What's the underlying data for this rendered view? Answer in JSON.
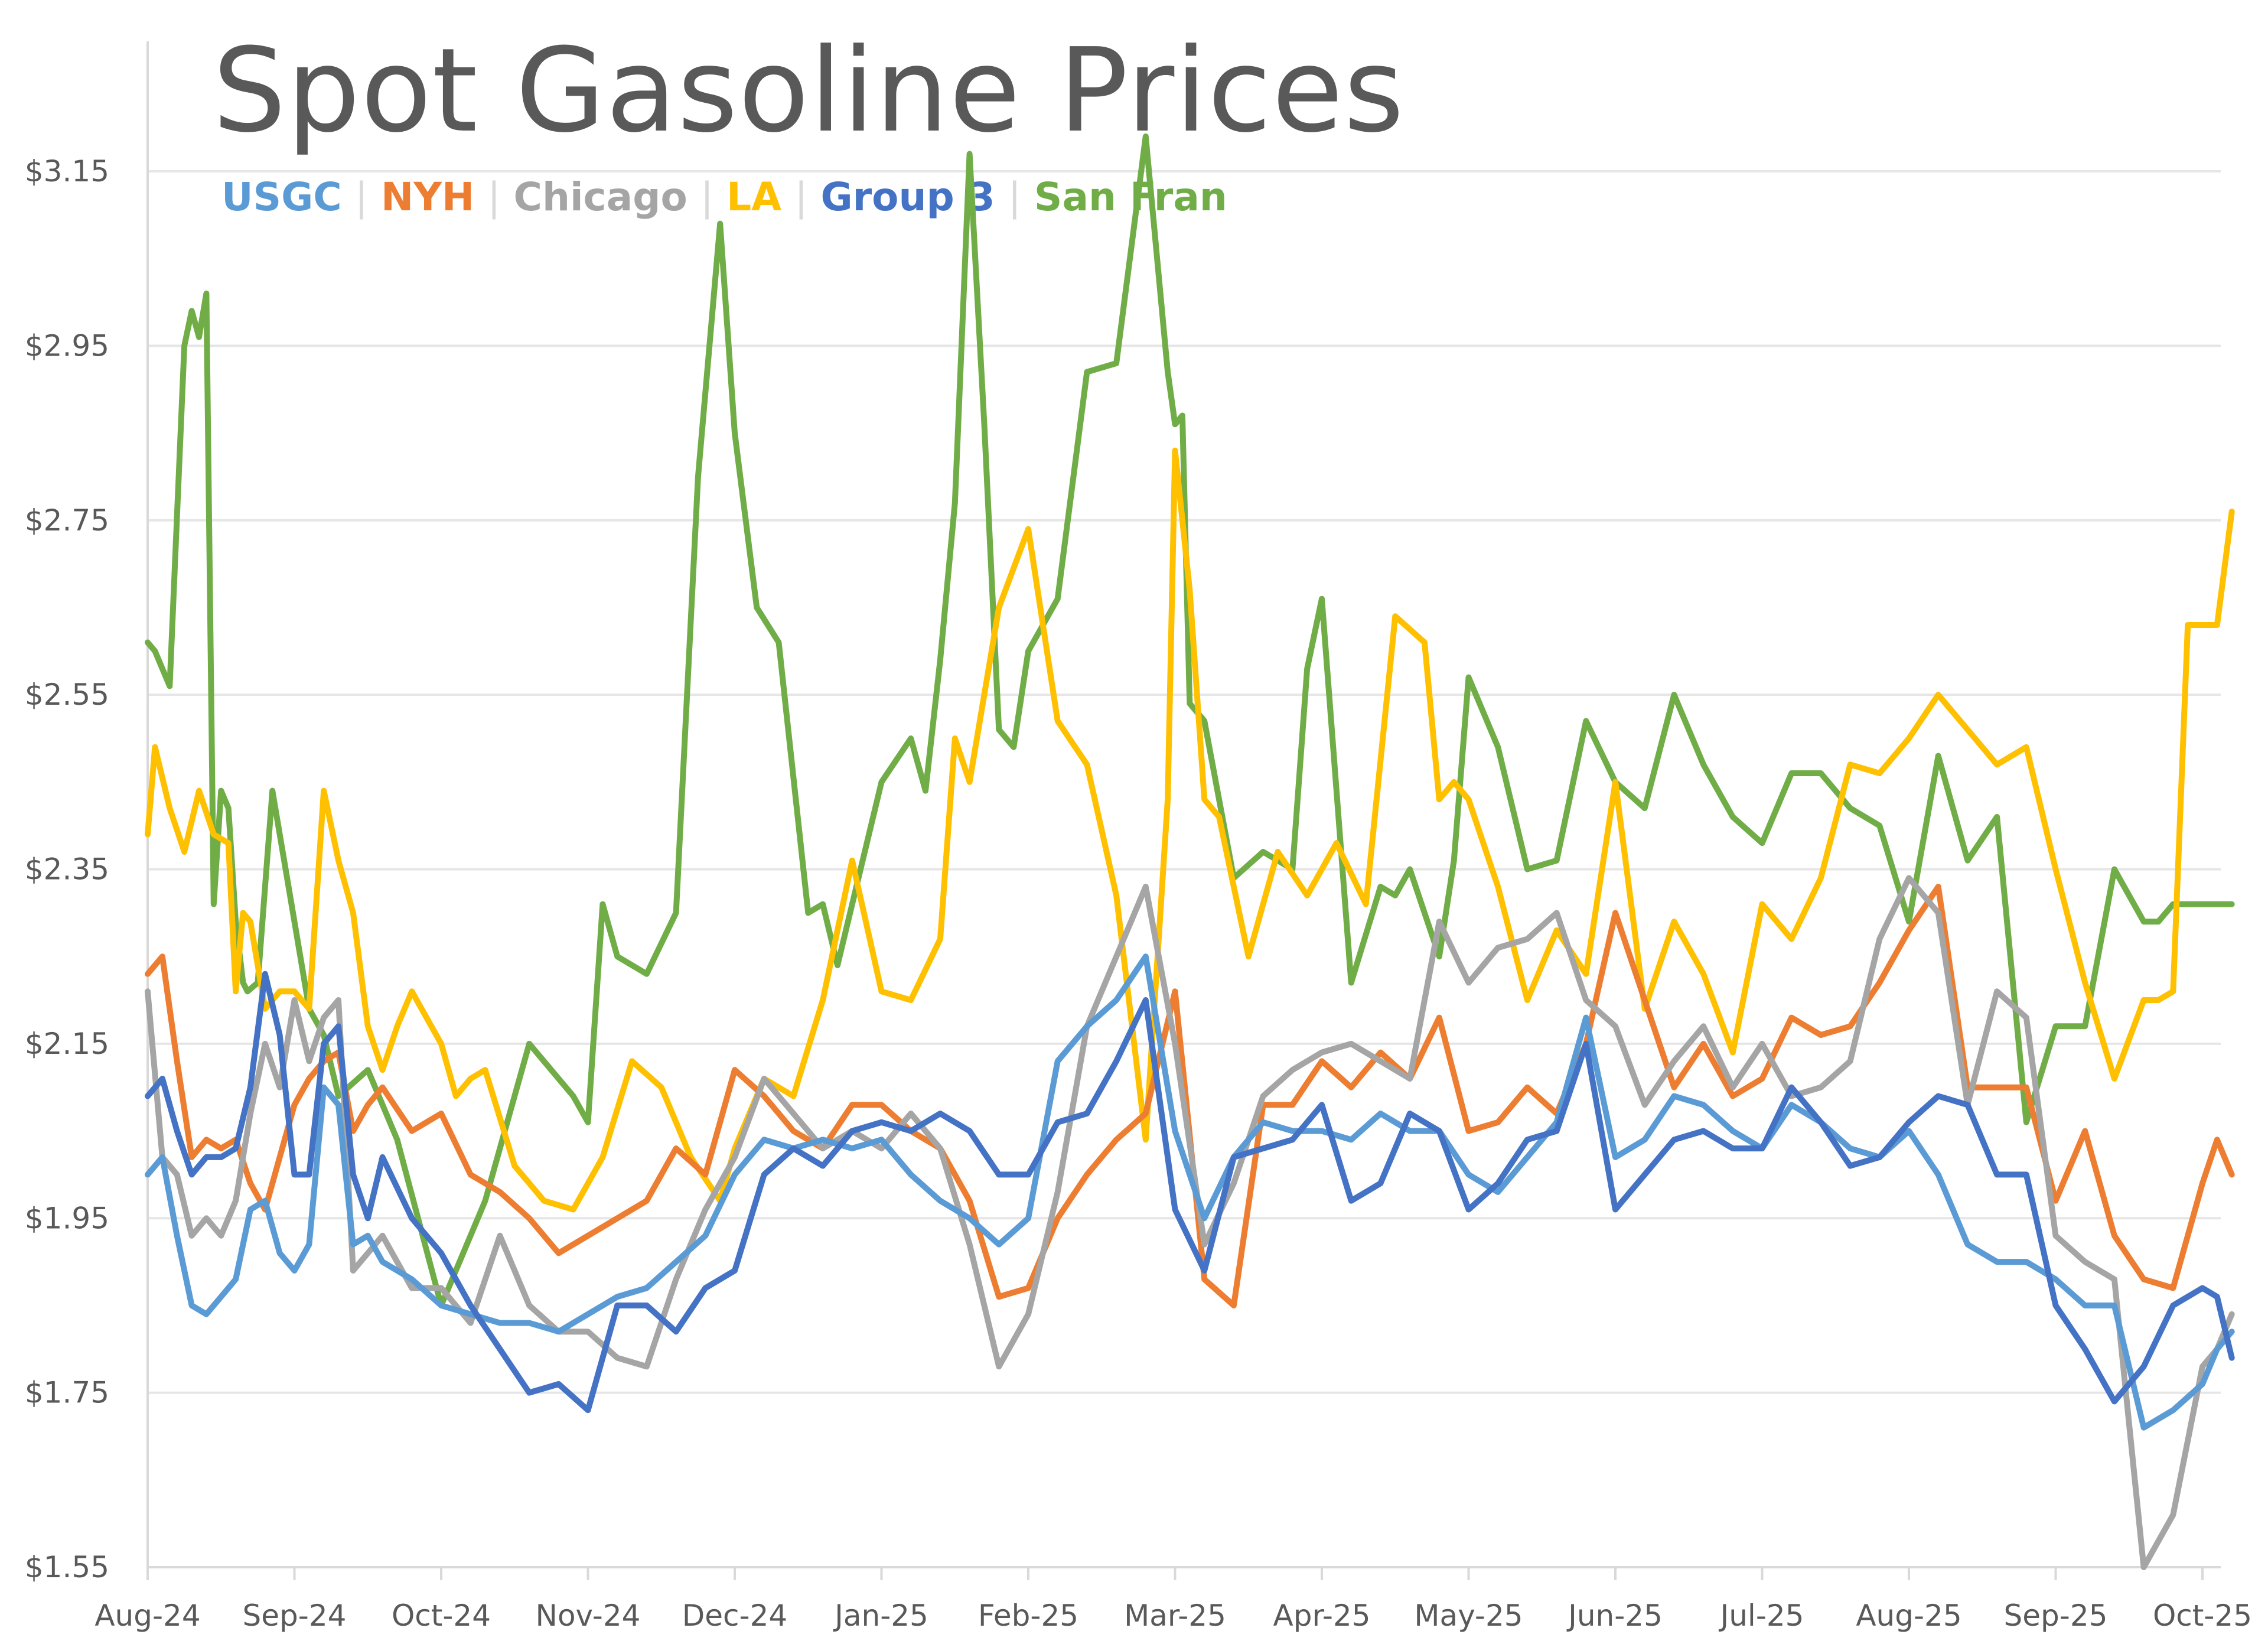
{
  "title": "Spot Gasoline Prices",
  "legend": [
    {
      "label": "USGC",
      "color": "#5B9BD5"
    },
    {
      "label": "NYH",
      "color": "#ED7D31"
    },
    {
      "label": "Chicago",
      "color": "#A5A5A5"
    },
    {
      "label": "LA",
      "color": "#FFC000"
    },
    {
      "label": "Group 3",
      "color": "#4472C4"
    },
    {
      "label": "San Fran",
      "color": "#70AD47"
    }
  ],
  "chart_data": {
    "type": "line",
    "title": "Spot Gasoline Prices",
    "xlabel": "",
    "ylabel": "",
    "ylim": [
      1.55,
      3.25
    ],
    "yticks": [
      "$1.55",
      "$1.75",
      "$1.95",
      "$2.15",
      "$2.35",
      "$2.55",
      "$2.75",
      "$2.95",
      "$3.15"
    ],
    "ytick_values": [
      1.55,
      1.75,
      1.95,
      2.15,
      2.35,
      2.55,
      2.75,
      2.95,
      3.15
    ],
    "x_categories": [
      "Aug-24",
      "Sep-24",
      "Oct-24",
      "Nov-24",
      "Dec-24",
      "Jan-25",
      "Feb-25",
      "Mar-25",
      "Apr-25",
      "May-25",
      "Jun-25",
      "Jul-25",
      "Aug-25",
      "Sep-25",
      "Oct-25"
    ],
    "grid": true,
    "legend_position": "top-left",
    "series": [
      {
        "name": "San Fran",
        "color": "#70AD47",
        "x": [
          0,
          0.05,
          0.15,
          0.25,
          0.3,
          0.35,
          0.4,
          0.45,
          0.5,
          0.55,
          0.6,
          0.65,
          0.68,
          0.75,
          0.85,
          1,
          1.1,
          1.2,
          1.3,
          1.5,
          1.7,
          2,
          2.3,
          2.6,
          2.9,
          3,
          3.1,
          3.2,
          3.4,
          3.6,
          3.75,
          3.9,
          4,
          4.15,
          4.3,
          4.5,
          4.6,
          4.7,
          5,
          5.2,
          5.3,
          5.4,
          5.5,
          5.6,
          5.7,
          5.8,
          5.9,
          6,
          6.2,
          6.4,
          6.6,
          6.8,
          6.95,
          7,
          7.05,
          7.1,
          7.2,
          7.4,
          7.6,
          7.8,
          7.9,
          8,
          8.2,
          8.4,
          8.5,
          8.6,
          8.7,
          8.8,
          8.9,
          9,
          9.2,
          9.4,
          9.6,
          9.8,
          10,
          10.2,
          10.4,
          10.6,
          10.8,
          11,
          11.2,
          11.4,
          11.6,
          11.8,
          12,
          12.2,
          12.4,
          12.6,
          12.8,
          13,
          13.2,
          13.4,
          13.6,
          13.7,
          13.8,
          13.9,
          14,
          14.1,
          14.2
        ],
        "values": [
          2.61,
          2.6,
          2.56,
          2.95,
          2.99,
          2.96,
          3.01,
          2.31,
          2.44,
          2.42,
          2.29,
          2.22,
          2.21,
          2.22,
          2.44,
          2.29,
          2.19,
          2.16,
          2.09,
          2.12,
          2.04,
          1.85,
          1.97,
          2.15,
          2.09,
          2.06,
          2.31,
          2.25,
          2.23,
          2.3,
          2.8,
          3.09,
          2.85,
          2.65,
          2.61,
          2.3,
          2.31,
          2.24,
          2.45,
          2.5,
          2.44,
          2.59,
          2.77,
          3.17,
          2.86,
          2.51,
          2.49,
          2.6,
          2.66,
          2.92,
          2.93,
          3.19,
          2.92,
          2.86,
          2.87,
          2.54,
          2.52,
          2.34,
          2.37,
          2.35,
          2.58,
          2.66,
          2.22,
          2.33,
          2.32,
          2.35,
          2.3,
          2.25,
          2.36,
          2.57,
          2.49,
          2.35,
          2.36,
          2.52,
          2.45,
          2.42,
          2.55,
          2.47,
          2.41,
          2.38,
          2.46,
          2.46,
          2.42,
          2.4,
          2.29,
          2.48,
          2.36,
          2.41,
          2.06,
          2.17,
          2.17,
          2.35,
          2.29,
          2.29,
          2.31,
          2.31,
          2.31,
          2.31,
          2.31
        ]
      },
      {
        "name": "LA",
        "color": "#FFC000",
        "x": [
          0,
          0.05,
          0.15,
          0.25,
          0.35,
          0.45,
          0.55,
          0.6,
          0.65,
          0.7,
          0.8,
          0.9,
          1,
          1.1,
          1.2,
          1.3,
          1.4,
          1.5,
          1.6,
          1.7,
          1.8,
          1.9,
          2,
          2.1,
          2.2,
          2.3,
          2.5,
          2.7,
          2.9,
          3.1,
          3.3,
          3.5,
          3.7,
          3.9,
          4,
          4.2,
          4.4,
          4.6,
          4.8,
          5,
          5.2,
          5.4,
          5.5,
          5.6,
          5.8,
          6,
          6.2,
          6.4,
          6.6,
          6.8,
          6.95,
          7,
          7.1,
          7.2,
          7.3,
          7.5,
          7.7,
          7.9,
          8.1,
          8.3,
          8.5,
          8.7,
          8.8,
          8.9,
          9,
          9.2,
          9.4,
          9.6,
          9.8,
          10,
          10.2,
          10.4,
          10.6,
          10.8,
          11,
          11.2,
          11.4,
          11.6,
          11.8,
          12,
          12.2,
          12.4,
          12.6,
          12.8,
          13,
          13.2,
          13.4,
          13.6,
          13.7,
          13.8,
          13.9,
          14,
          14.1,
          14.2
        ],
        "values": [
          2.39,
          2.49,
          2.42,
          2.37,
          2.44,
          2.39,
          2.38,
          2.21,
          2.3,
          2.29,
          2.19,
          2.21,
          2.21,
          2.19,
          2.44,
          2.36,
          2.3,
          2.17,
          2.12,
          2.17,
          2.21,
          2.18,
          2.15,
          2.09,
          2.11,
          2.12,
          2.01,
          1.97,
          1.96,
          2.02,
          2.13,
          2.1,
          2.02,
          1.97,
          2.03,
          2.11,
          2.09,
          2.2,
          2.36,
          2.21,
          2.2,
          2.27,
          2.5,
          2.45,
          2.65,
          2.74,
          2.52,
          2.47,
          2.32,
          2.04,
          2.43,
          2.83,
          2.67,
          2.43,
          2.41,
          2.25,
          2.37,
          2.32,
          2.38,
          2.31,
          2.64,
          2.61,
          2.43,
          2.45,
          2.43,
          2.33,
          2.2,
          2.28,
          2.23,
          2.45,
          2.19,
          2.29,
          2.23,
          2.14,
          2.31,
          2.27,
          2.34,
          2.47,
          2.46,
          2.5,
          2.55,
          2.51,
          2.47,
          2.49,
          2.35,
          2.22,
          2.11,
          2.2,
          2.2,
          2.21,
          2.63,
          2.63,
          2.63,
          2.76
        ]
      },
      {
        "name": "NYH",
        "color": "#ED7D31",
        "x": [
          0,
          0.1,
          0.2,
          0.3,
          0.4,
          0.5,
          0.6,
          0.7,
          0.8,
          0.9,
          1,
          1.1,
          1.2,
          1.3,
          1.4,
          1.5,
          1.6,
          1.8,
          2,
          2.2,
          2.4,
          2.6,
          2.8,
          3,
          3.2,
          3.4,
          3.6,
          3.8,
          4,
          4.2,
          4.4,
          4.6,
          4.8,
          5,
          5.2,
          5.4,
          5.6,
          5.8,
          6,
          6.2,
          6.4,
          6.6,
          6.8,
          7,
          7.2,
          7.4,
          7.6,
          7.8,
          8,
          8.2,
          8.4,
          8.6,
          8.8,
          9,
          9.2,
          9.4,
          9.6,
          9.8,
          10,
          10.2,
          10.4,
          10.6,
          10.8,
          11,
          11.2,
          11.4,
          11.6,
          11.8,
          12,
          12.2,
          12.4,
          12.6,
          12.8,
          13,
          13.2,
          13.4,
          13.6,
          13.8,
          14,
          14.1,
          14.2
        ],
        "values": [
          2.23,
          2.25,
          2.13,
          2.02,
          2.04,
          2.03,
          2.04,
          1.99,
          1.96,
          2.02,
          2.08,
          2.11,
          2.13,
          2.14,
          2.05,
          2.08,
          2.1,
          2.05,
          2.07,
          2.0,
          1.98,
          1.95,
          1.91,
          1.93,
          1.95,
          1.97,
          2.03,
          2.0,
          2.12,
          2.09,
          2.05,
          2.03,
          2.08,
          2.08,
          2.05,
          2.03,
          1.97,
          1.86,
          1.87,
          1.95,
          2.0,
          2.04,
          2.07,
          2.21,
          1.88,
          1.85,
          2.08,
          2.08,
          2.13,
          2.1,
          2.14,
          2.11,
          2.18,
          2.05,
          2.06,
          2.1,
          2.07,
          2.15,
          2.3,
          2.2,
          2.1,
          2.15,
          2.09,
          2.11,
          2.18,
          2.16,
          2.17,
          2.22,
          2.28,
          2.33,
          2.1,
          2.1,
          2.1,
          1.97,
          2.05,
          1.93,
          1.88,
          1.87,
          1.99,
          2.04,
          2.0
        ]
      },
      {
        "name": "Chicago",
        "color": "#A5A5A5",
        "x": [
          0,
          0.1,
          0.2,
          0.3,
          0.4,
          0.5,
          0.6,
          0.7,
          0.8,
          0.9,
          1,
          1.1,
          1.2,
          1.3,
          1.4,
          1.5,
          1.6,
          1.8,
          2,
          2.2,
          2.4,
          2.6,
          2.8,
          3,
          3.2,
          3.4,
          3.6,
          3.8,
          4,
          4.2,
          4.4,
          4.6,
          4.8,
          5,
          5.2,
          5.4,
          5.6,
          5.8,
          6,
          6.2,
          6.4,
          6.6,
          6.8,
          7,
          7.2,
          7.4,
          7.6,
          7.8,
          8,
          8.2,
          8.4,
          8.6,
          8.8,
          9,
          9.2,
          9.4,
          9.6,
          9.8,
          10,
          10.2,
          10.4,
          10.6,
          10.8,
          11,
          11.2,
          11.4,
          11.6,
          11.8,
          12,
          12.2,
          12.4,
          12.6,
          12.8,
          13,
          13.2,
          13.4,
          13.6,
          13.8,
          14,
          14.1,
          14.2
        ],
        "values": [
          2.21,
          2.02,
          2.0,
          1.93,
          1.95,
          1.93,
          1.97,
          2.07,
          2.15,
          2.1,
          2.2,
          2.13,
          2.18,
          2.2,
          1.89,
          1.91,
          1.93,
          1.87,
          1.87,
          1.83,
          1.93,
          1.85,
          1.82,
          1.82,
          1.79,
          1.78,
          1.88,
          1.96,
          2.02,
          2.11,
          2.07,
          2.03,
          2.05,
          2.03,
          2.07,
          2.03,
          1.92,
          1.78,
          1.84,
          1.98,
          2.17,
          2.25,
          2.33,
          2.15,
          1.92,
          1.99,
          2.09,
          2.12,
          2.14,
          2.15,
          2.13,
          2.11,
          2.29,
          2.22,
          2.26,
          2.27,
          2.3,
          2.2,
          2.17,
          2.08,
          2.13,
          2.17,
          2.1,
          2.15,
          2.09,
          2.1,
          2.13,
          2.27,
          2.34,
          2.3,
          2.08,
          2.21,
          2.18,
          1.93,
          1.9,
          1.88,
          1.55,
          1.61,
          1.78,
          1.8,
          1.84
        ]
      },
      {
        "name": "USGC",
        "color": "#5B9BD5",
        "x": [
          0,
          0.1,
          0.2,
          0.3,
          0.4,
          0.5,
          0.6,
          0.7,
          0.8,
          0.9,
          1,
          1.1,
          1.2,
          1.3,
          1.4,
          1.5,
          1.6,
          1.8,
          2,
          2.2,
          2.4,
          2.6,
          2.8,
          3,
          3.2,
          3.4,
          3.6,
          3.8,
          4,
          4.2,
          4.4,
          4.6,
          4.8,
          5,
          5.2,
          5.4,
          5.6,
          5.8,
          6,
          6.2,
          6.4,
          6.6,
          6.8,
          7,
          7.2,
          7.4,
          7.6,
          7.8,
          8,
          8.2,
          8.4,
          8.6,
          8.8,
          9,
          9.2,
          9.4,
          9.6,
          9.8,
          10,
          10.2,
          10.4,
          10.6,
          10.8,
          11,
          11.2,
          11.4,
          11.6,
          11.8,
          12,
          12.2,
          12.4,
          12.6,
          12.8,
          13,
          13.2,
          13.4,
          13.6,
          13.8,
          14,
          14.1,
          14.2
        ],
        "values": [
          2.0,
          2.02,
          1.93,
          1.85,
          1.84,
          1.86,
          1.88,
          1.96,
          1.97,
          1.91,
          1.89,
          1.92,
          2.1,
          2.08,
          1.92,
          1.93,
          1.9,
          1.88,
          1.85,
          1.84,
          1.83,
          1.83,
          1.82,
          1.84,
          1.86,
          1.87,
          1.9,
          1.93,
          2.0,
          2.04,
          2.03,
          2.04,
          2.03,
          2.04,
          2.0,
          1.97,
          1.95,
          1.92,
          1.95,
          2.13,
          2.17,
          2.2,
          2.25,
          2.05,
          1.95,
          2.02,
          2.06,
          2.05,
          2.05,
          2.04,
          2.07,
          2.05,
          2.05,
          2.0,
          1.98,
          2.02,
          2.06,
          2.18,
          2.02,
          2.04,
          2.09,
          2.08,
          2.05,
          2.03,
          2.08,
          2.06,
          2.03,
          2.02,
          2.05,
          2.0,
          1.92,
          1.9,
          1.9,
          1.88,
          1.85,
          1.85,
          1.71,
          1.73,
          1.76,
          1.8,
          1.82
        ]
      },
      {
        "name": "Group 3",
        "color": "#4472C4",
        "x": [
          0,
          0.1,
          0.2,
          0.3,
          0.4,
          0.5,
          0.6,
          0.7,
          0.8,
          0.9,
          1,
          1.1,
          1.2,
          1.3,
          1.4,
          1.5,
          1.6,
          1.8,
          2,
          2.2,
          2.4,
          2.6,
          2.8,
          3,
          3.2,
          3.4,
          3.6,
          3.8,
          4,
          4.2,
          4.4,
          4.6,
          4.8,
          5,
          5.2,
          5.4,
          5.6,
          5.8,
          6,
          6.2,
          6.4,
          6.6,
          6.8,
          7,
          7.2,
          7.4,
          7.6,
          7.8,
          8,
          8.2,
          8.4,
          8.6,
          8.8,
          9,
          9.2,
          9.4,
          9.6,
          9.8,
          10,
          10.2,
          10.4,
          10.6,
          10.8,
          11,
          11.2,
          11.4,
          11.6,
          11.8,
          12,
          12.2,
          12.4,
          12.6,
          12.8,
          13,
          13.2,
          13.4,
          13.6,
          13.8,
          14,
          14.1,
          14.2
        ],
        "values": [
          2.09,
          2.11,
          2.05,
          2.0,
          2.02,
          2.02,
          2.03,
          2.1,
          2.23,
          2.16,
          2.0,
          2.0,
          2.15,
          2.17,
          2.0,
          1.95,
          2.02,
          1.95,
          1.91,
          1.85,
          1.8,
          1.75,
          1.76,
          1.73,
          1.85,
          1.85,
          1.82,
          1.87,
          1.89,
          2.0,
          2.03,
          2.01,
          2.05,
          2.06,
          2.05,
          2.07,
          2.05,
          2.0,
          2.0,
          2.06,
          2.07,
          2.13,
          2.2,
          1.96,
          1.89,
          2.02,
          2.03,
          2.04,
          2.08,
          1.97,
          1.99,
          2.07,
          2.05,
          1.96,
          1.99,
          2.04,
          2.05,
          2.15,
          1.96,
          2.0,
          2.04,
          2.05,
          2.03,
          2.03,
          2.1,
          2.06,
          2.01,
          2.02,
          2.06,
          2.09,
          2.08,
          2.0,
          2.0,
          1.85,
          1.8,
          1.74,
          1.78,
          1.85,
          1.87,
          1.86,
          1.79
        ]
      }
    ]
  }
}
